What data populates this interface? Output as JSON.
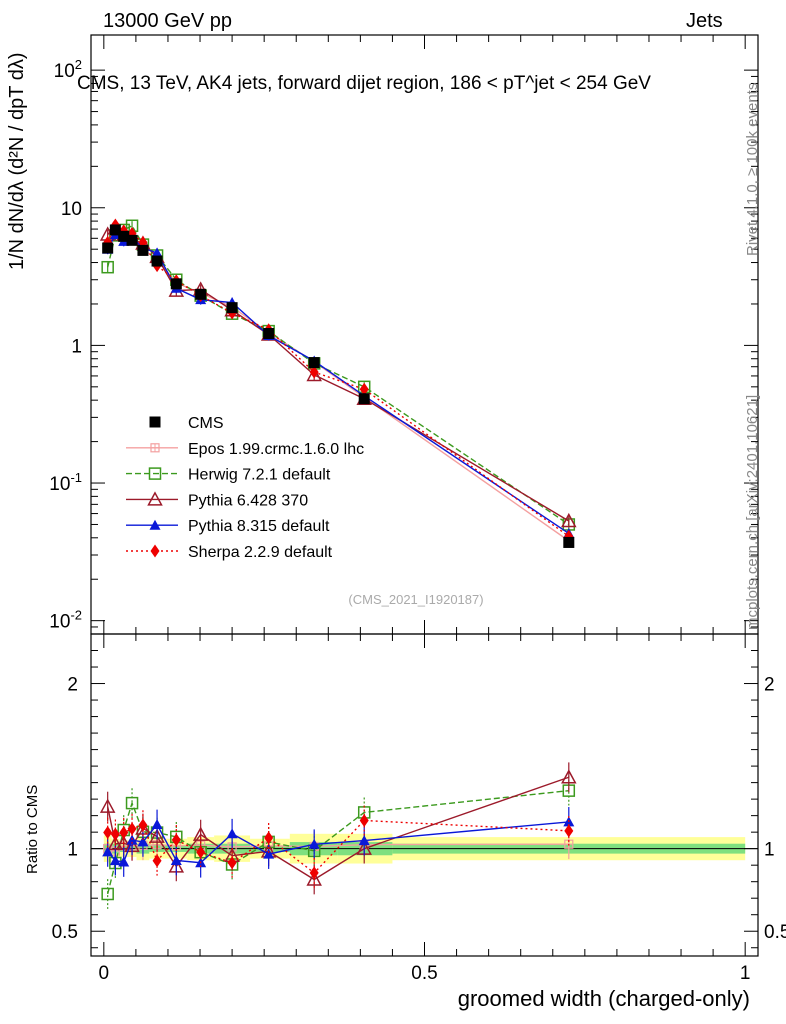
{
  "header": {
    "energy": "13000 GeV pp",
    "category": "Jets"
  },
  "side_labels": {
    "rivet": "Rivet 4.1.0, ≥ 100k events",
    "mcplots": "mcplots.cern.ch [arXiv:2401.10621]"
  },
  "axes": {
    "ylabel_main": "1/N dN/dλ (d²N / dpT dλ)",
    "ylabel_ratio": "Ratio to CMS",
    "xlabel": "groomed width (charged-only)"
  },
  "colors": {
    "cms": "#000000",
    "epos": "#f4a0a0",
    "herwig": "#3c9a1e",
    "pythia6": "#9c1a2a",
    "pythia8": "#0a18d8",
    "sherpa": "#ee0000",
    "band_inner": "#7fe07f",
    "band_outer": "#ffff99"
  },
  "chart_data": {
    "type": "line",
    "title": "CMS, 13 TeV, AK4 jets, forward dijet region, 186 < pT^jet < 254 GeV",
    "watermark": "(CMS_2021_I1920187)",
    "xlabel": "groomed width (charged-only)",
    "ylabel": "1/N dN/dλ",
    "xlim": [
      -0.02,
      1.02
    ],
    "ylim": [
      0.008,
      180
    ],
    "yscale": "log",
    "ratio_ylim": [
      0.35,
      2.3
    ],
    "x_ticks": [
      "0",
      "0.5",
      "1"
    ],
    "y_ticks": [
      "10^-2",
      "10^-1",
      "1",
      "10",
      "10^2"
    ],
    "ratio_ticks": [
      "0.5",
      "1",
      "2"
    ],
    "x": [
      0.006,
      0.018,
      0.031,
      0.044,
      0.061,
      0.083,
      0.113,
      0.151,
      0.2,
      0.257,
      0.328,
      0.406,
      0.725
    ],
    "series": [
      {
        "name": "CMS",
        "key": "cms",
        "marker": "square-filled",
        "dash": "none",
        "values": [
          5.1,
          6.9,
          6.2,
          5.8,
          4.9,
          4.1,
          2.8,
          2.35,
          1.88,
          1.22,
          0.75,
          0.41,
          0.037
        ]
      },
      {
        "name": "Epos 1.99.crmc.1.6.0 lhc",
        "key": "epos",
        "marker": "cross-open",
        "dash": "none",
        "values": [
          5.1,
          6.8,
          6.3,
          5.9,
          5.0,
          4.2,
          2.85,
          2.4,
          1.9,
          1.24,
          0.76,
          0.42,
          0.038
        ]
      },
      {
        "name": "Herwig 7.2.1 default",
        "key": "herwig",
        "marker": "square-open",
        "dash": "6,3",
        "values": [
          3.7,
          6.3,
          6.9,
          7.4,
          5.4,
          4.5,
          3.0,
          2.3,
          1.7,
          1.27,
          0.74,
          0.5,
          0.05
        ]
      },
      {
        "name": "Pythia 6.428 370",
        "key": "pythia6",
        "marker": "triangle-open",
        "dash": "none",
        "values": [
          6.4,
          7.1,
          6.4,
          5.9,
          5.5,
          4.4,
          2.5,
          2.55,
          1.8,
          1.2,
          0.61,
          0.41,
          0.053
        ]
      },
      {
        "name": "Pythia 8.315 default",
        "key": "pythia8",
        "marker": "triangle-filled",
        "dash": "none",
        "values": [
          5.0,
          6.4,
          5.7,
          6.1,
          5.1,
          4.7,
          2.6,
          2.15,
          2.05,
          1.18,
          0.77,
          0.43,
          0.043
        ]
      },
      {
        "name": "Sherpa 2.2.9 default",
        "key": "sherpa",
        "marker": "diamond-filled",
        "dash": "2,3",
        "values": [
          5.6,
          7.5,
          6.8,
          6.5,
          5.6,
          3.8,
          2.95,
          2.3,
          1.72,
          1.3,
          0.64,
          0.48,
          0.041
        ]
      }
    ],
    "legend_position": "center-left"
  }
}
